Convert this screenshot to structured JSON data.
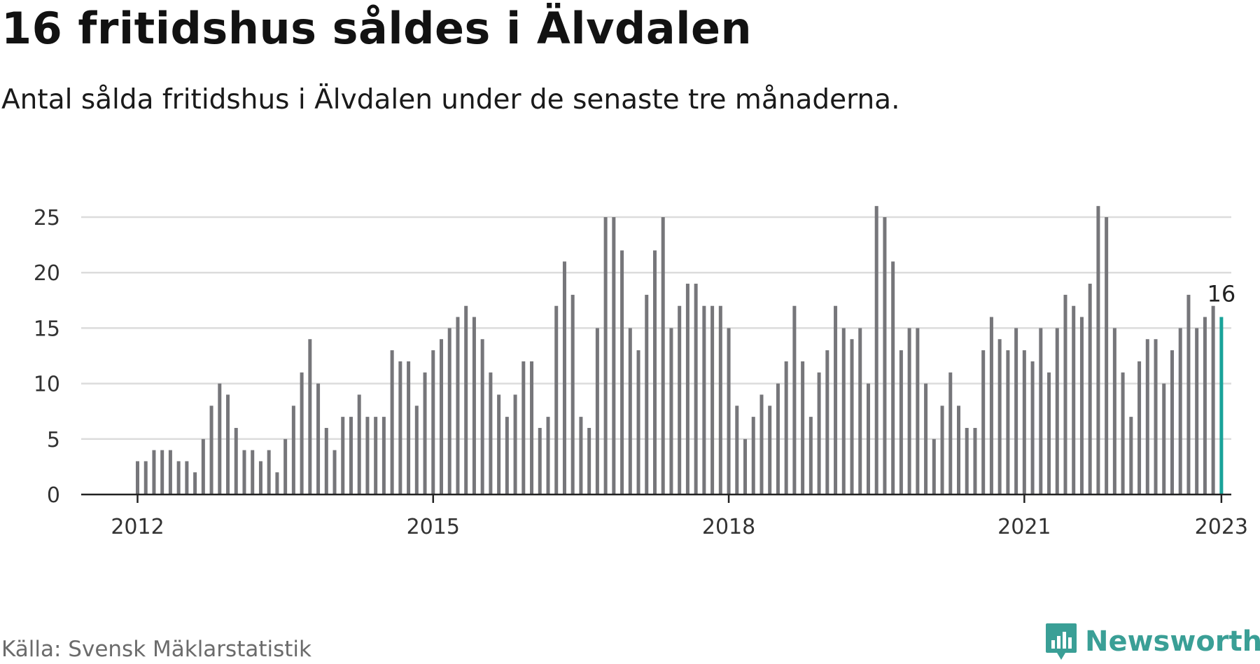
{
  "header": {
    "title": "16 fritidshus såldes i Älvdalen",
    "subtitle": "Antal sålda fritidshus i Älvdalen under de senaste tre månaderna."
  },
  "footer": {
    "source": "Källa: Svensk Mäklarstatistik",
    "brand_name": "Newsworthy",
    "brand_icon": "newsworthy-logo-icon"
  },
  "colors": {
    "bar": "#76767a",
    "highlight": "#1aa39a",
    "grid": "#dcdcdc",
    "axis": "#222222",
    "brand": "#3a9f96"
  },
  "chart_data": {
    "type": "bar",
    "title": "16 fritidshus såldes i Älvdalen",
    "subtitle": "Antal sålda fritidshus i Älvdalen under de senaste tre månaderna.",
    "xlabel": "",
    "ylabel": "",
    "x_start": "2012-01",
    "x_end": "2023-01",
    "interval": "monthly",
    "x_ticks": [
      "2012",
      "2015",
      "2018",
      "2021",
      "2023"
    ],
    "y_ticks": [
      0,
      5,
      10,
      15,
      20,
      25
    ],
    "ylim": [
      0,
      26
    ],
    "grid": true,
    "highlight_last": true,
    "last_value_label": "16",
    "series": [
      {
        "values": [
          3,
          3,
          4,
          4,
          4,
          3,
          3,
          2,
          5,
          8,
          10,
          9,
          6,
          4,
          4,
          3,
          4,
          2,
          5,
          8,
          11,
          14,
          10,
          6,
          4,
          7,
          7,
          9,
          7,
          7,
          7,
          13,
          12,
          12,
          8,
          11,
          13,
          14,
          15,
          16,
          17,
          16,
          14,
          11,
          9,
          7,
          9,
          12,
          12,
          6,
          7,
          17,
          21,
          18,
          7,
          6,
          15,
          25,
          25,
          22,
          15,
          13,
          18,
          22,
          25,
          15,
          17,
          19,
          19,
          17,
          17,
          17,
          15,
          8,
          5,
          7,
          9,
          8,
          10,
          12,
          17,
          12,
          7,
          11,
          13,
          17,
          15,
          14,
          15,
          10,
          26,
          25,
          21,
          13,
          15,
          15,
          10,
          5,
          8,
          11,
          8,
          6,
          6,
          13,
          16,
          14,
          13,
          15,
          13,
          12,
          15,
          11,
          15,
          18,
          17,
          16,
          19,
          26,
          25,
          15,
          11,
          7,
          12,
          14,
          14,
          10,
          13,
          15,
          18,
          15,
          16,
          17,
          16
        ]
      }
    ]
  }
}
